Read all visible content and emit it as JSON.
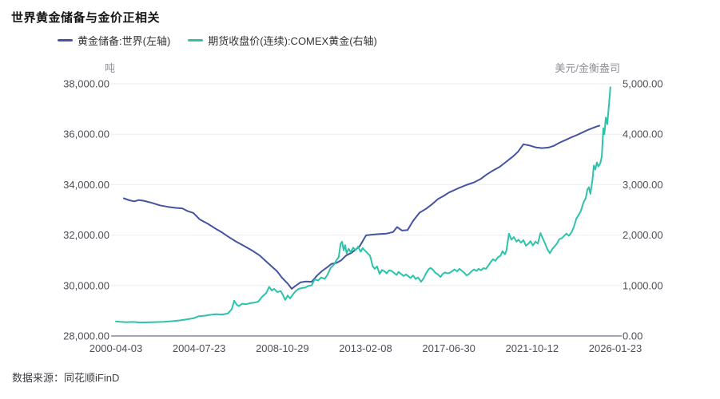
{
  "title": "世界黄金储备与金价正相关",
  "source": "数据来源：同花顺iFinD",
  "colors": {
    "reserves_line": "#4553a0",
    "gold_price_line": "#2dc3aa",
    "gridline": "#ebebf2",
    "axis_line": "#454c6e",
    "tick_label": "#4e4e56",
    "unit_label": "#8f8f96"
  },
  "legend": [
    {
      "label": "黄金储备:世界(左轴)",
      "color": "#4553a0"
    },
    {
      "label": "期货收盘价(连续):COMEX黄金(右轴)",
      "color": "#2dc3aa"
    }
  ],
  "left_axis": {
    "unit": "吨",
    "min": 28000,
    "max": 38000,
    "ticks": [
      "38,000.00",
      "36,000.00",
      "34,000.00",
      "32,000.00",
      "30,000.00",
      "28,000.00"
    ]
  },
  "right_axis": {
    "unit": "美元/金衡盎司",
    "min": 0,
    "max": 5000,
    "ticks": [
      "5,000.00",
      "4,000.00",
      "3,000.00",
      "2,000.00",
      "1,000.00",
      "0.00"
    ]
  },
  "x_axis": {
    "labels": [
      "2000-04-03",
      "2004-07-23",
      "2008-10-29",
      "2013-02-08",
      "2017-06-30",
      "2021-10-12",
      "2026-01-23"
    ]
  },
  "chart_data": {
    "type": "line",
    "title": "世界黄金储备与金价正相关",
    "x_ticks": [
      "2000-04-03",
      "2004-07-23",
      "2008-10-29",
      "2013-02-08",
      "2017-06-30",
      "2021-10-12",
      "2026-01-23"
    ],
    "left_ylim": [
      28000,
      38000
    ],
    "right_ylim": [
      0,
      5000
    ],
    "grid": true,
    "legend_position": "top-left",
    "series": [
      {
        "name": "黄金储备:世界(左轴)",
        "axis": "left",
        "unit": "吨",
        "color": "#4553a0",
        "points": [
          [
            0.016,
            33460
          ],
          [
            0.027,
            33380
          ],
          [
            0.037,
            33340
          ],
          [
            0.046,
            33390
          ],
          [
            0.056,
            33360
          ],
          [
            0.072,
            33280
          ],
          [
            0.088,
            33180
          ],
          [
            0.104,
            33120
          ],
          [
            0.12,
            33080
          ],
          [
            0.133,
            33060
          ],
          [
            0.144,
            32950
          ],
          [
            0.155,
            32880
          ],
          [
            0.168,
            32620
          ],
          [
            0.184,
            32450
          ],
          [
            0.2,
            32250
          ],
          [
            0.213,
            32100
          ],
          [
            0.224,
            31950
          ],
          [
            0.24,
            31750
          ],
          [
            0.253,
            31610
          ],
          [
            0.272,
            31400
          ],
          [
            0.288,
            31190
          ],
          [
            0.304,
            30900
          ],
          [
            0.323,
            30560
          ],
          [
            0.333,
            30300
          ],
          [
            0.344,
            30080
          ],
          [
            0.352,
            29870
          ],
          [
            0.36,
            29990
          ],
          [
            0.37,
            30130
          ],
          [
            0.381,
            30160
          ],
          [
            0.392,
            30150
          ],
          [
            0.403,
            30400
          ],
          [
            0.413,
            30580
          ],
          [
            0.422,
            30710
          ],
          [
            0.432,
            30860
          ],
          [
            0.442,
            30900
          ],
          [
            0.451,
            31000
          ],
          [
            0.461,
            31190
          ],
          [
            0.472,
            31300
          ],
          [
            0.488,
            31550
          ],
          [
            0.501,
            31990
          ],
          [
            0.514,
            32020
          ],
          [
            0.528,
            32040
          ],
          [
            0.542,
            32060
          ],
          [
            0.555,
            32120
          ],
          [
            0.563,
            32320
          ],
          [
            0.573,
            32180
          ],
          [
            0.584,
            32200
          ],
          [
            0.595,
            32560
          ],
          [
            0.608,
            32890
          ],
          [
            0.621,
            33040
          ],
          [
            0.634,
            33240
          ],
          [
            0.645,
            33430
          ],
          [
            0.656,
            33550
          ],
          [
            0.667,
            33690
          ],
          [
            0.685,
            33850
          ],
          [
            0.701,
            33980
          ],
          [
            0.717,
            34090
          ],
          [
            0.73,
            34220
          ],
          [
            0.742,
            34400
          ],
          [
            0.755,
            34560
          ],
          [
            0.768,
            34700
          ],
          [
            0.781,
            34900
          ],
          [
            0.794,
            35100
          ],
          [
            0.805,
            35300
          ],
          [
            0.816,
            35600
          ],
          [
            0.827,
            35560
          ],
          [
            0.84,
            35480
          ],
          [
            0.853,
            35450
          ],
          [
            0.866,
            35470
          ],
          [
            0.877,
            35540
          ],
          [
            0.888,
            35660
          ],
          [
            0.899,
            35760
          ],
          [
            0.91,
            35860
          ],
          [
            0.922,
            35960
          ],
          [
            0.933,
            36060
          ],
          [
            0.944,
            36160
          ],
          [
            0.954,
            36240
          ],
          [
            0.962,
            36300
          ],
          [
            0.968,
            36340
          ]
        ]
      },
      {
        "name": "期货收盘价(连续):COMEX黄金(右轴)",
        "axis": "right",
        "unit": "美元/金衡盎司",
        "color": "#2dc3aa",
        "points": [
          [
            0.0,
            290
          ],
          [
            0.008,
            282
          ],
          [
            0.021,
            272
          ],
          [
            0.034,
            278
          ],
          [
            0.048,
            268
          ],
          [
            0.064,
            270
          ],
          [
            0.08,
            276
          ],
          [
            0.096,
            280
          ],
          [
            0.112,
            292
          ],
          [
            0.128,
            308
          ],
          [
            0.144,
            332
          ],
          [
            0.155,
            350
          ],
          [
            0.166,
            392
          ],
          [
            0.178,
            402
          ],
          [
            0.187,
            418
          ],
          [
            0.2,
            432
          ],
          [
            0.213,
            426
          ],
          [
            0.224,
            445
          ],
          [
            0.232,
            530
          ],
          [
            0.237,
            700
          ],
          [
            0.242,
            620
          ],
          [
            0.246,
            590
          ],
          [
            0.253,
            640
          ],
          [
            0.261,
            630
          ],
          [
            0.269,
            650
          ],
          [
            0.277,
            660
          ],
          [
            0.285,
            680
          ],
          [
            0.293,
            780
          ],
          [
            0.301,
            850
          ],
          [
            0.307,
            975
          ],
          [
            0.312,
            900
          ],
          [
            0.317,
            935
          ],
          [
            0.323,
            870
          ],
          [
            0.33,
            890
          ],
          [
            0.334,
            820
          ],
          [
            0.339,
            715
          ],
          [
            0.344,
            800
          ],
          [
            0.349,
            745
          ],
          [
            0.354,
            820
          ],
          [
            0.36,
            890
          ],
          [
            0.366,
            935
          ],
          [
            0.373,
            950
          ],
          [
            0.379,
            960
          ],
          [
            0.386,
            995
          ],
          [
            0.392,
            1005
          ],
          [
            0.398,
            1120
          ],
          [
            0.405,
            1100
          ],
          [
            0.411,
            1160
          ],
          [
            0.418,
            1130
          ],
          [
            0.424,
            1220
          ],
          [
            0.43,
            1350
          ],
          [
            0.437,
            1420
          ],
          [
            0.442,
            1510
          ],
          [
            0.446,
            1560
          ],
          [
            0.45,
            1830
          ],
          [
            0.453,
            1870
          ],
          [
            0.456,
            1700
          ],
          [
            0.459,
            1800
          ],
          [
            0.462,
            1640
          ],
          [
            0.466,
            1730
          ],
          [
            0.47,
            1660
          ],
          [
            0.475,
            1750
          ],
          [
            0.48,
            1700
          ],
          [
            0.485,
            1770
          ],
          [
            0.49,
            1670
          ],
          [
            0.494,
            1740
          ],
          [
            0.499,
            1690
          ],
          [
            0.504,
            1640
          ],
          [
            0.509,
            1590
          ],
          [
            0.514,
            1390
          ],
          [
            0.518,
            1330
          ],
          [
            0.523,
            1380
          ],
          [
            0.528,
            1230
          ],
          [
            0.533,
            1310
          ],
          [
            0.538,
            1280
          ],
          [
            0.542,
            1240
          ],
          [
            0.547,
            1300
          ],
          [
            0.552,
            1290
          ],
          [
            0.557,
            1250
          ],
          [
            0.562,
            1210
          ],
          [
            0.566,
            1270
          ],
          [
            0.571,
            1230
          ],
          [
            0.576,
            1190
          ],
          [
            0.581,
            1220
          ],
          [
            0.586,
            1180
          ],
          [
            0.59,
            1150
          ],
          [
            0.595,
            1200
          ],
          [
            0.6,
            1130
          ],
          [
            0.605,
            1160
          ],
          [
            0.611,
            1075
          ],
          [
            0.616,
            1140
          ],
          [
            0.621,
            1240
          ],
          [
            0.626,
            1320
          ],
          [
            0.63,
            1350
          ],
          [
            0.635,
            1310
          ],
          [
            0.64,
            1250
          ],
          [
            0.645,
            1220
          ],
          [
            0.65,
            1170
          ],
          [
            0.654,
            1230
          ],
          [
            0.659,
            1260
          ],
          [
            0.664,
            1240
          ],
          [
            0.669,
            1255
          ],
          [
            0.674,
            1290
          ],
          [
            0.678,
            1320
          ],
          [
            0.683,
            1280
          ],
          [
            0.688,
            1330
          ],
          [
            0.693,
            1290
          ],
          [
            0.698,
            1250
          ],
          [
            0.702,
            1200
          ],
          [
            0.707,
            1230
          ],
          [
            0.712,
            1280
          ],
          [
            0.717,
            1320
          ],
          [
            0.722,
            1290
          ],
          [
            0.726,
            1330
          ],
          [
            0.731,
            1300
          ],
          [
            0.736,
            1345
          ],
          [
            0.741,
            1330
          ],
          [
            0.746,
            1400
          ],
          [
            0.75,
            1460
          ],
          [
            0.755,
            1520
          ],
          [
            0.76,
            1490
          ],
          [
            0.765,
            1560
          ],
          [
            0.77,
            1590
          ],
          [
            0.774,
            1680
          ],
          [
            0.779,
            1620
          ],
          [
            0.782,
            1700
          ],
          [
            0.787,
            2030
          ],
          [
            0.792,
            1910
          ],
          [
            0.797,
            1960
          ],
          [
            0.802,
            1870
          ],
          [
            0.806,
            1910
          ],
          [
            0.811,
            1850
          ],
          [
            0.816,
            1900
          ],
          [
            0.821,
            1790
          ],
          [
            0.826,
            1830
          ],
          [
            0.83,
            1880
          ],
          [
            0.835,
            1795
          ],
          [
            0.84,
            1870
          ],
          [
            0.845,
            1830
          ],
          [
            0.85,
            2040
          ],
          [
            0.854,
            1950
          ],
          [
            0.859,
            1840
          ],
          [
            0.864,
            1720
          ],
          [
            0.869,
            1640
          ],
          [
            0.874,
            1730
          ],
          [
            0.878,
            1770
          ],
          [
            0.883,
            1830
          ],
          [
            0.888,
            1920
          ],
          [
            0.893,
            1940
          ],
          [
            0.898,
            1990
          ],
          [
            0.902,
            2030
          ],
          [
            0.907,
            1985
          ],
          [
            0.912,
            2050
          ],
          [
            0.917,
            2160
          ],
          [
            0.922,
            2330
          ],
          [
            0.926,
            2390
          ],
          [
            0.931,
            2480
          ],
          [
            0.936,
            2640
          ],
          [
            0.941,
            2740
          ],
          [
            0.944,
            2900
          ],
          [
            0.947,
            2950
          ],
          [
            0.95,
            2820
          ],
          [
            0.954,
            3080
          ],
          [
            0.957,
            3380
          ],
          [
            0.96,
            3300
          ],
          [
            0.963,
            3440
          ],
          [
            0.966,
            3360
          ],
          [
            0.97,
            3430
          ],
          [
            0.973,
            3560
          ],
          [
            0.976,
            4120
          ],
          [
            0.978,
            4000
          ],
          [
            0.981,
            4330
          ],
          [
            0.984,
            4200
          ],
          [
            0.987,
            4560
          ],
          [
            0.99,
            4930
          ]
        ]
      }
    ]
  }
}
